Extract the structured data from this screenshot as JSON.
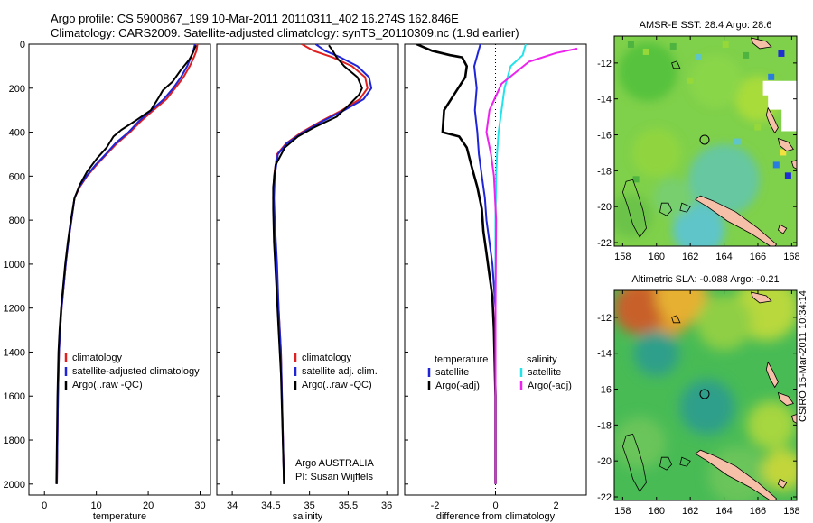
{
  "title": {
    "line1": "Argo profile: CS 5900867_199 10-Mar-2011 20110311_402 16.274S 162.846E",
    "line2": "Climatology: CARS2009. Satellite-adjusted climatology: synTS_20110309.nc (1.9d earlier)"
  },
  "side_caption": "CSIRO 15-Mar-2011 10:34:14",
  "colors": {
    "red": "#e02020",
    "blue": "#1f25d6",
    "black": "#000000",
    "cyan": "#22e3ea",
    "magenta": "#ee22ee"
  },
  "chart_data": [
    {
      "type": "line",
      "xlabel": "temperature",
      "ylabel": "",
      "xlim": [
        -3,
        32
      ],
      "ylim": [
        2050,
        0
      ],
      "xticks": [
        0,
        10,
        20,
        30
      ],
      "yticks": [
        0,
        200,
        400,
        600,
        800,
        1000,
        1200,
        1400,
        1600,
        1800,
        2000
      ],
      "grid": false,
      "legend": "lower-left",
      "series": [
        {
          "name": "climatology",
          "color": "red",
          "x": [
            29.5,
            29.3,
            28.8,
            28.0,
            26.8,
            25.2,
            23.5,
            21.0,
            18.6,
            16.5,
            14.0,
            12.0,
            10.0,
            8.2,
            6.8,
            5.8,
            5.2,
            4.6,
            4.1,
            3.7,
            3.3,
            3.0,
            2.8,
            2.6,
            2.5,
            2.4
          ],
          "y": [
            0,
            30,
            60,
            100,
            150,
            200,
            250,
            300,
            350,
            400,
            450,
            500,
            550,
            600,
            650,
            700,
            800,
            900,
            1000,
            1100,
            1200,
            1300,
            1400,
            1600,
            1800,
            2000
          ]
        },
        {
          "name": "satellite-adjusted climatology",
          "color": "blue",
          "x": [
            29.0,
            28.7,
            28.2,
            27.5,
            26.3,
            24.8,
            23.0,
            20.6,
            18.2,
            16.2,
            13.7,
            11.8,
            9.8,
            8.1,
            6.7,
            5.8,
            5.2,
            4.6,
            4.1,
            3.7,
            3.3,
            3.0,
            2.8,
            2.6,
            2.5,
            2.4
          ],
          "y": [
            0,
            30,
            60,
            100,
            150,
            200,
            250,
            300,
            350,
            400,
            450,
            500,
            550,
            600,
            650,
            700,
            800,
            900,
            1000,
            1100,
            1200,
            1300,
            1400,
            1600,
            1800,
            2000
          ]
        },
        {
          "name": "Argo(..raw -QC)",
          "color": "black",
          "x": [
            29.2,
            28.6,
            27.9,
            26.2,
            24.7,
            22.8,
            22.1,
            20.5,
            17.4,
            14.8,
            13.3,
            12.0,
            10.1,
            8.2,
            6.8,
            5.8,
            5.1,
            4.5,
            4.0,
            3.6,
            3.2,
            2.9,
            2.7,
            2.5,
            2.4,
            2.3
          ],
          "y": [
            5,
            40,
            70,
            120,
            170,
            210,
            240,
            300,
            350,
            390,
            420,
            470,
            520,
            580,
            640,
            700,
            800,
            900,
            1000,
            1100,
            1200,
            1300,
            1400,
            1600,
            1800,
            2000
          ]
        }
      ]
    },
    {
      "type": "line",
      "xlabel": "salinity",
      "ylabel": "",
      "xlim": [
        33.8,
        36.15
      ],
      "ylim": [
        2050,
        0
      ],
      "xticks": [
        34,
        34.5,
        35,
        35.5,
        36
      ],
      "xtick_labels": [
        "34",
        "34.5",
        "35",
        "35.5",
        "36"
      ],
      "grid": false,
      "legend": "lower-left",
      "series": [
        {
          "name": "climatology",
          "color": "red",
          "x": [
            34.9,
            35.05,
            35.3,
            35.55,
            35.72,
            35.75,
            35.65,
            35.42,
            35.15,
            34.9,
            34.7,
            34.58,
            34.54,
            34.53,
            34.54,
            34.57,
            34.6,
            34.63,
            34.65,
            34.67
          ],
          "y": [
            0,
            30,
            60,
            100,
            150,
            200,
            250,
            300,
            350,
            400,
            450,
            500,
            600,
            700,
            800,
            1000,
            1200,
            1400,
            1700,
            2000
          ]
        },
        {
          "name": "satellite adj. clim.",
          "color": "blue",
          "x": [
            35.08,
            35.2,
            35.4,
            35.62,
            35.77,
            35.8,
            35.7,
            35.45,
            35.17,
            34.92,
            34.71,
            34.59,
            34.55,
            34.54,
            34.55,
            34.58,
            34.6,
            34.63,
            34.65,
            34.67
          ],
          "y": [
            0,
            30,
            60,
            100,
            150,
            200,
            250,
            300,
            350,
            400,
            450,
            500,
            600,
            700,
            800,
            1000,
            1200,
            1400,
            1700,
            2000
          ]
        },
        {
          "name": "Argo(..raw -QC)",
          "color": "black",
          "x": [
            35.25,
            35.3,
            35.35,
            35.45,
            35.62,
            35.68,
            35.64,
            35.5,
            35.35,
            35.05,
            34.85,
            34.68,
            34.56,
            34.53,
            34.53,
            34.54,
            34.57,
            34.6,
            34.63,
            34.65,
            34.67
          ],
          "y": [
            5,
            30,
            60,
            100,
            150,
            200,
            230,
            280,
            330,
            380,
            420,
            470,
            550,
            650,
            750,
            900,
            1100,
            1300,
            1500,
            1750,
            2000
          ]
        }
      ],
      "annotations": [
        "Argo AUSTRALIA",
        "PI: Susan Wijffels"
      ]
    },
    {
      "type": "line",
      "xlabel": "difference from climatology",
      "ylabel": "",
      "xlim": [
        -3,
        3
      ],
      "ylim": [
        2050,
        0
      ],
      "xticks": [
        -2,
        0,
        2
      ],
      "xtick_labels": [
        "-2",
        "0",
        "2"
      ],
      "grid": false,
      "zero_line": "dotted",
      "legend": "lower-center",
      "legend_headers": [
        "temperature",
        "salinity"
      ],
      "series": [
        {
          "name": "satellite",
          "group": "temperature",
          "color": "blue",
          "x": [
            -0.5,
            -0.7,
            -0.62,
            -0.68,
            -0.6,
            -0.55,
            -0.5,
            -0.45,
            -0.4,
            -0.35,
            -0.3,
            -0.2,
            -0.1,
            -0.05,
            0,
            0,
            0
          ],
          "y": [
            0,
            100,
            200,
            300,
            400,
            500,
            550,
            600,
            650,
            700,
            800,
            900,
            1000,
            1100,
            1200,
            1600,
            2000
          ]
        },
        {
          "name": "Argo(-adj)",
          "group": "temperature",
          "color": "black",
          "x": [
            -2.6,
            -2.1,
            -1.5,
            -1.1,
            -0.95,
            -1.0,
            -1.7,
            -1.75,
            -1.2,
            -0.95,
            -0.8,
            -0.6,
            -0.45,
            -0.4,
            -0.3,
            -0.2,
            -0.1,
            -0.05,
            0,
            0
          ],
          "y": [
            0,
            30,
            50,
            60,
            100,
            150,
            300,
            400,
            420,
            470,
            550,
            650,
            750,
            850,
            950,
            1050,
            1150,
            1300,
            1600,
            2000
          ]
        },
        {
          "name": "satellite",
          "group": "salinity",
          "color": "cyan",
          "x": [
            1.0,
            0.9,
            0.5,
            0.3,
            0.2,
            0.1,
            0.05,
            0.02,
            0,
            0,
            0
          ],
          "y": [
            0,
            50,
            100,
            200,
            300,
            400,
            500,
            600,
            800,
            1200,
            2000
          ]
        },
        {
          "name": "Argo(-adj)",
          "group": "salinity",
          "color": "magenta",
          "x": [
            2.7,
            2.0,
            1.1,
            0.2,
            -0.2,
            -0.3,
            -0.15,
            -0.05,
            0.02,
            0,
            0
          ],
          "y": [
            20,
            40,
            80,
            180,
            300,
            400,
            500,
            600,
            800,
            1200,
            2000
          ]
        }
      ]
    },
    {
      "type": "heatmap",
      "title": "AMSR-E SST: 28.4 Argo: 28.6",
      "xlim": [
        157.5,
        168.3
      ],
      "ylim": [
        -22.2,
        -10.5
      ],
      "xticks": [
        158,
        160,
        162,
        164,
        166,
        168
      ],
      "yticks": [
        -12,
        -14,
        -16,
        -18,
        -20,
        -22
      ],
      "marker": {
        "lon": 162.846,
        "lat": -16.274
      }
    },
    {
      "type": "heatmap",
      "title": "Altimetric SLA: -0.088 Argo: -0.21",
      "xlim": [
        157.5,
        168.3
      ],
      "ylim": [
        -22.2,
        -10.5
      ],
      "xticks": [
        158,
        160,
        162,
        164,
        166,
        168
      ],
      "yticks": [
        -12,
        -14,
        -16,
        -18,
        -20,
        -22
      ],
      "marker": {
        "lon": 162.846,
        "lat": -16.274
      }
    }
  ]
}
